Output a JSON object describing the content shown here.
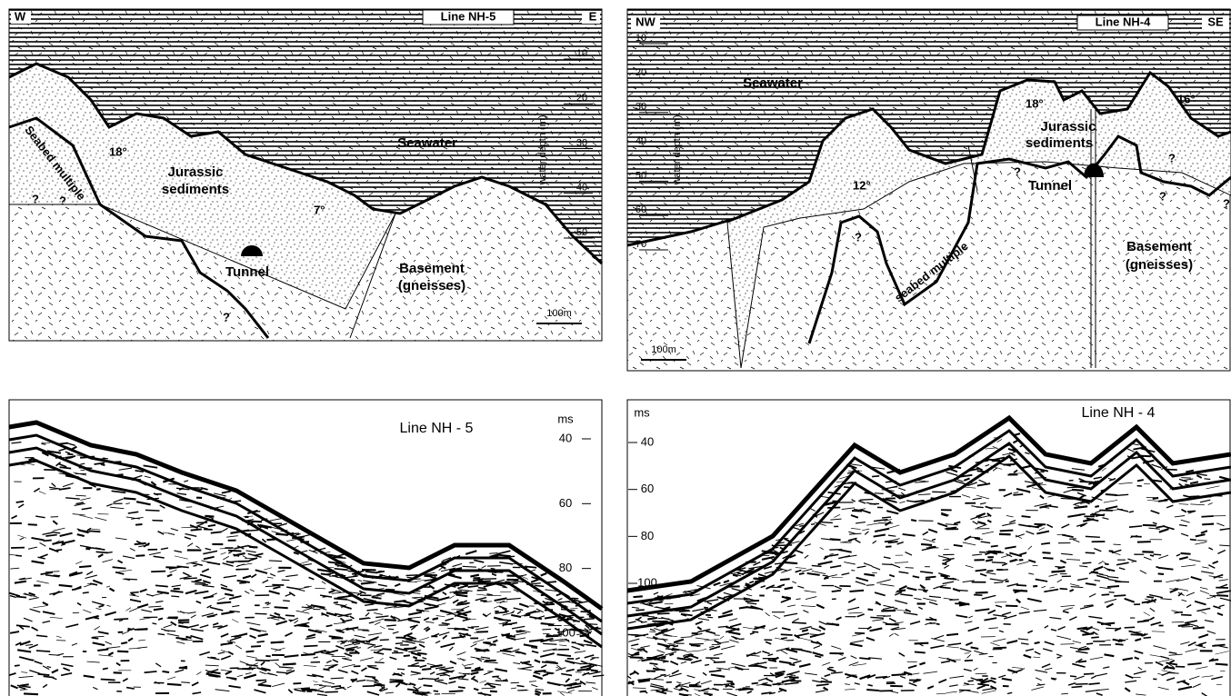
{
  "sections": [
    {
      "line": "Line NH-5",
      "dir_left": "W",
      "dir_right": "E",
      "depth_label": "water depth (m)",
      "depth_ticks": [
        10,
        20,
        30,
        40,
        50
      ],
      "scale": "100m",
      "labels": [
        "Seawater",
        "Jurassic",
        "sediments",
        "Tunnel",
        "Basement",
        "(gneisses)",
        "18°",
        "7°",
        "Seabed multiple",
        "?",
        "?",
        "?"
      ]
    },
    {
      "line": "Line NH-4",
      "dir_left": "NW",
      "dir_right": "SE",
      "depth_label": "water depth (m)",
      "depth_ticks": [
        10,
        20,
        30,
        40,
        50,
        60,
        70
      ],
      "scale": "100m",
      "labels": [
        "Seawater",
        "Jurassic",
        "sediments",
        "Tunnel",
        "Basement",
        "(gneisses)",
        "18°",
        "16°",
        "12°",
        "seabed multiple",
        "?",
        "?",
        "?",
        "?",
        "?"
      ]
    }
  ],
  "profiles": [
    {
      "line": "Line NH - 5",
      "unit": "ms",
      "ticks": [
        40,
        60,
        80,
        100
      ]
    },
    {
      "line": "Line NH - 4",
      "unit": "ms",
      "ticks": [
        40,
        60,
        80,
        100
      ]
    }
  ]
}
